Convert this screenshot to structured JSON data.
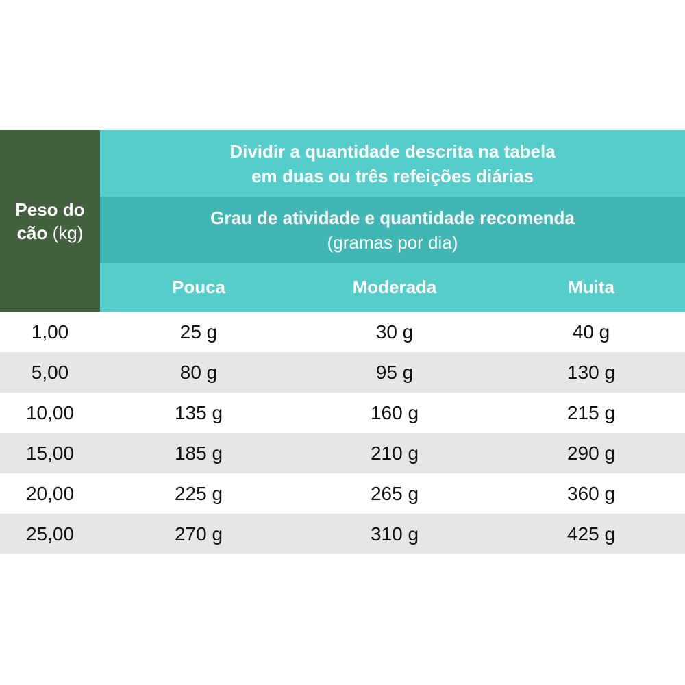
{
  "table": {
    "weight_header": {
      "line1": "Peso do",
      "line2_bold": "cão",
      "line2_unit": "(kg)"
    },
    "note": {
      "line1": "Dividir a quantidade descrita na tabela",
      "line2": "em duas ou três refeições diárias"
    },
    "activity": {
      "title": "Grau de atividade e quantidade recomenda",
      "subtitle": "(gramas por dia)"
    },
    "levels": [
      "Pouca",
      "Moderada",
      "Muita"
    ],
    "rows": [
      {
        "weight": "1,00",
        "values": [
          "25 g",
          "30 g",
          "40 g"
        ]
      },
      {
        "weight": "5,00",
        "values": [
          "80 g",
          "95 g",
          "130 g"
        ]
      },
      {
        "weight": "10,00",
        "values": [
          "135 g",
          "160 g",
          "215 g"
        ]
      },
      {
        "weight": "15,00",
        "values": [
          "185 g",
          "210 g",
          "290 g"
        ]
      },
      {
        "weight": "20,00",
        "values": [
          "225 g",
          "265 g",
          "360 g"
        ]
      },
      {
        "weight": "25,00",
        "values": [
          "270 g",
          "310 g",
          "425 g"
        ]
      }
    ]
  },
  "colors": {
    "weight_header_bg": "#43603e",
    "teal_light": "#55cdca",
    "teal_dark": "#40b7b4",
    "row_shade": "#e6e6e6"
  }
}
